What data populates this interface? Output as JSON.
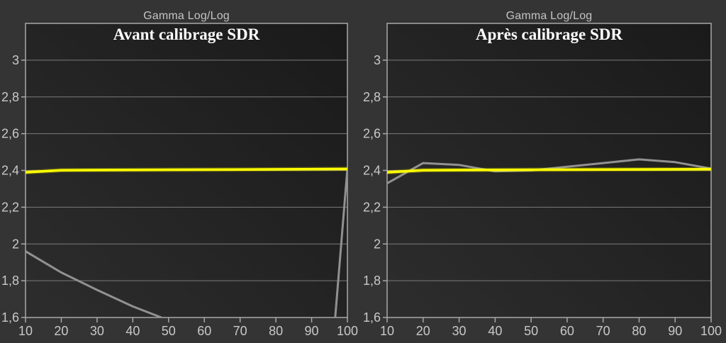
{
  "chart_data": [
    {
      "type": "line",
      "header": "Gamma Log/Log",
      "title": "Avant calibrage SDR",
      "xlabel": "",
      "ylabel": "",
      "legend": "none",
      "grid": "horizontal",
      "xlim": [
        10,
        100
      ],
      "ylim": [
        1.6,
        3.2
      ],
      "x_tick_values": [
        10,
        20,
        30,
        40,
        50,
        60,
        70,
        80,
        90,
        100
      ],
      "x_tick_labels": [
        "10",
        "20",
        "30",
        "40",
        "50",
        "60",
        "70",
        "80",
        "90",
        "100"
      ],
      "y_tick_values": [
        3,
        2.8,
        2.6,
        2.4,
        2.2,
        2,
        1.8,
        1.6
      ],
      "y_tick_labels": [
        "3",
        "2,8",
        "2,6",
        "2,4",
        "2,2",
        "2",
        "1,8",
        "1,6"
      ],
      "plot_bg": [
        "#2d2d2d",
        "#1a1a1a"
      ],
      "series": [
        {
          "name": "measured-gamma",
          "color": "#919191",
          "width": 3,
          "glow": false,
          "segments": [
            [
              [
                10,
                1.96
              ],
              [
                20,
                1.845
              ],
              [
                30,
                1.75
              ],
              [
                40,
                1.66
              ],
              [
                48,
                1.6
              ]
            ],
            [
              [
                96.6,
                1.6
              ],
              [
                100,
                2.41
              ]
            ]
          ]
        },
        {
          "name": "target-gamma",
          "color": "#ffff00",
          "width": 3.5,
          "glow": true,
          "segments": [
            [
              [
                10,
                2.39
              ],
              [
                20,
                2.401
              ],
              [
                40,
                2.403
              ],
              [
                70,
                2.405
              ],
              [
                100,
                2.408
              ]
            ]
          ]
        }
      ]
    },
    {
      "type": "line",
      "header": "Gamma Log/Log",
      "title": "Après calibrage SDR",
      "xlabel": "",
      "ylabel": "",
      "legend": "none",
      "grid": "horizontal",
      "xlim": [
        10,
        100
      ],
      "ylim": [
        1.6,
        3.2
      ],
      "x_tick_values": [
        10,
        20,
        30,
        40,
        50,
        60,
        70,
        80,
        90,
        100
      ],
      "x_tick_labels": [
        "10",
        "20",
        "30",
        "40",
        "50",
        "60",
        "70",
        "80",
        "90",
        "100"
      ],
      "y_tick_values": [
        3,
        2.8,
        2.6,
        2.4,
        2.2,
        2,
        1.8,
        1.6
      ],
      "y_tick_labels": [
        "3",
        "2,8",
        "2,6",
        "2,4",
        "2,2",
        "2",
        "1,8",
        "1,6"
      ],
      "plot_bg": [
        "#2d2d2d",
        "#1a1a1a"
      ],
      "series": [
        {
          "name": "measured-gamma",
          "color": "#919191",
          "width": 3,
          "glow": false,
          "segments": [
            [
              [
                10,
                2.33
              ],
              [
                20,
                2.44
              ],
              [
                30,
                2.43
              ],
              [
                40,
                2.395
              ],
              [
                50,
                2.4
              ],
              [
                60,
                2.42
              ],
              [
                70,
                2.44
              ],
              [
                80,
                2.46
              ],
              [
                90,
                2.445
              ],
              [
                100,
                2.41
              ]
            ]
          ]
        },
        {
          "name": "target-gamma",
          "color": "#ffff00",
          "width": 3.5,
          "glow": true,
          "segments": [
            [
              [
                10,
                2.39
              ],
              [
                20,
                2.401
              ],
              [
                40,
                2.403
              ],
              [
                70,
                2.405
              ],
              [
                100,
                2.407
              ]
            ]
          ]
        }
      ]
    }
  ]
}
